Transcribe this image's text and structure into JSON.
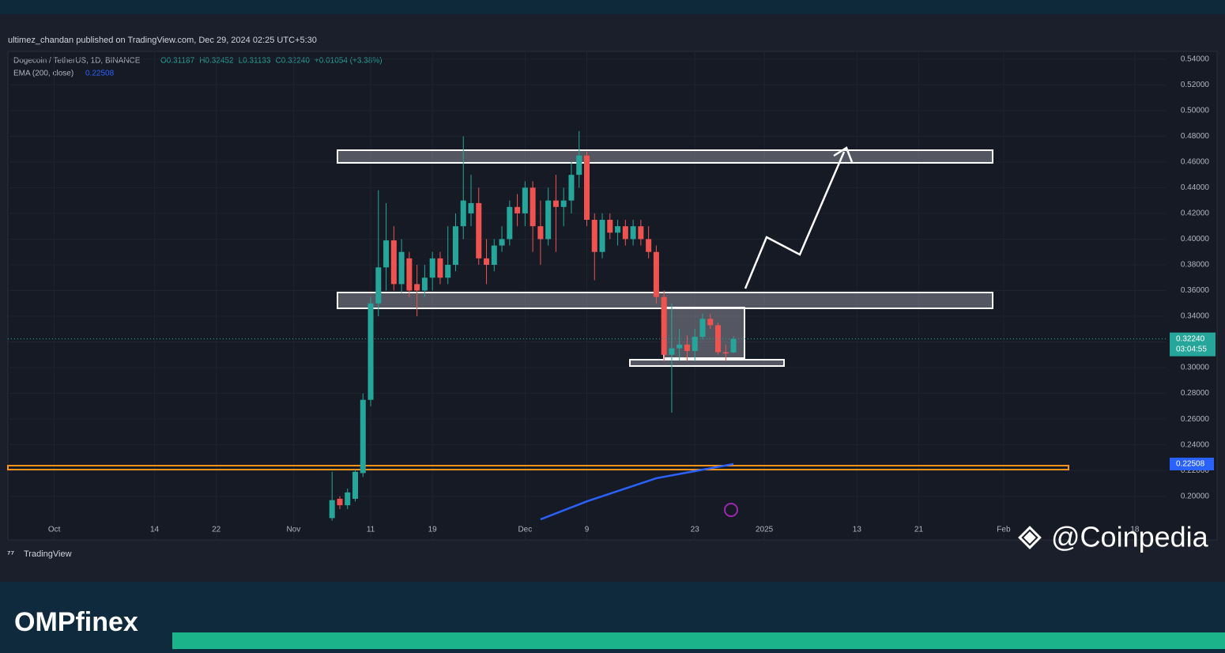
{
  "header": {
    "published": "ultimez_chandan published on TradingView.com, Dec 29, 2024 02:25 UTC+5:30",
    "symbol": "Dogecoin / TetherUS, 1D, BINANCE",
    "ohlc": [
      "O0.31187",
      "H0.32452",
      "L0.31133",
      "C0.32240",
      "+0.01054 (+3.38%)"
    ],
    "ema_value": "0.22508"
  },
  "chart_data": {
    "type": "candlestick",
    "up_color": "#26a69a",
    "down_color": "#ef5350",
    "x": [
      "2024-11-06",
      "2024-11-07",
      "2024-11-08",
      "2024-11-09",
      "2024-11-10",
      "2024-11-11",
      "2024-11-12",
      "2024-11-13",
      "2024-11-14",
      "2024-11-15",
      "2024-11-16",
      "2024-11-17",
      "2024-11-18",
      "2024-11-19",
      "2024-11-20",
      "2024-11-21",
      "2024-11-22",
      "2024-11-23",
      "2024-11-24",
      "2024-11-25",
      "2024-11-26",
      "2024-11-27",
      "2024-11-28",
      "2024-11-29",
      "2024-11-30",
      "2024-12-01",
      "2024-12-02",
      "2024-12-03",
      "2024-12-04",
      "2024-12-05",
      "2024-12-06",
      "2024-12-07",
      "2024-12-08",
      "2024-12-09",
      "2024-12-10",
      "2024-12-11",
      "2024-12-12",
      "2024-12-13",
      "2024-12-14",
      "2024-12-15",
      "2024-12-16",
      "2024-12-17",
      "2024-12-18",
      "2024-12-19",
      "2024-12-20",
      "2024-12-21",
      "2024-12-22",
      "2024-12-23",
      "2024-12-24",
      "2024-12-25",
      "2024-12-26",
      "2024-12-27",
      "2024-12-28"
    ],
    "open": [
      0.183,
      0.198,
      0.193,
      0.198,
      0.218,
      0.275,
      0.35,
      0.378,
      0.399,
      0.365,
      0.385,
      0.365,
      0.36,
      0.37,
      0.385,
      0.37,
      0.38,
      0.41,
      0.42,
      0.428,
      0.385,
      0.38,
      0.395,
      0.4,
      0.425,
      0.42,
      0.44,
      0.41,
      0.4,
      0.43,
      0.425,
      0.43,
      0.45,
      0.465,
      0.415,
      0.39,
      0.415,
      0.405,
      0.41,
      0.4,
      0.41,
      0.4,
      0.39,
      0.355,
      0.31,
      0.315,
      0.318,
      0.313,
      0.324,
      0.338,
      0.333,
      0.312,
      0.31187
    ],
    "high": [
      0.219,
      0.2,
      0.206,
      0.221,
      0.28,
      0.355,
      0.438,
      0.428,
      0.41,
      0.4,
      0.39,
      0.38,
      0.38,
      0.39,
      0.39,
      0.41,
      0.42,
      0.48,
      0.45,
      0.44,
      0.4,
      0.4,
      0.41,
      0.43,
      0.435,
      0.445,
      0.445,
      0.43,
      0.44,
      0.45,
      0.44,
      0.46,
      0.484,
      0.468,
      0.42,
      0.42,
      0.42,
      0.415,
      0.415,
      0.415,
      0.415,
      0.41,
      0.395,
      0.36,
      0.35,
      0.33,
      0.325,
      0.33,
      0.342,
      0.342,
      0.335,
      0.318,
      0.32452
    ],
    "low": [
      0.181,
      0.19,
      0.19,
      0.196,
      0.215,
      0.27,
      0.34,
      0.36,
      0.36,
      0.358,
      0.355,
      0.34,
      0.355,
      0.36,
      0.365,
      0.365,
      0.375,
      0.4,
      0.41,
      0.38,
      0.365,
      0.375,
      0.39,
      0.395,
      0.41,
      0.41,
      0.39,
      0.38,
      0.395,
      0.39,
      0.41,
      0.42,
      0.44,
      0.41,
      0.368,
      0.385,
      0.4,
      0.395,
      0.395,
      0.395,
      0.395,
      0.385,
      0.35,
      0.305,
      0.265,
      0.305,
      0.305,
      0.305,
      0.322,
      0.33,
      0.31,
      0.305,
      0.31133
    ],
    "close": [
      0.197,
      0.193,
      0.203,
      0.219,
      0.275,
      0.35,
      0.378,
      0.399,
      0.365,
      0.39,
      0.36,
      0.36,
      0.37,
      0.385,
      0.37,
      0.38,
      0.41,
      0.43,
      0.428,
      0.385,
      0.38,
      0.395,
      0.4,
      0.425,
      0.42,
      0.44,
      0.41,
      0.4,
      0.43,
      0.425,
      0.43,
      0.45,
      0.465,
      0.415,
      0.39,
      0.415,
      0.405,
      0.41,
      0.4,
      0.41,
      0.4,
      0.39,
      0.355,
      0.31,
      0.315,
      0.318,
      0.313,
      0.324,
      0.338,
      0.333,
      0.312,
      0.311,
      0.3224
    ],
    "ema": {
      "name": "EMA (200, close)",
      "color": "#2962ff",
      "x": [
        "2024-12-03",
        "2024-12-09",
        "2024-12-18",
        "2024-12-28"
      ],
      "values": [
        0.182,
        0.196,
        0.214,
        0.22508
      ]
    },
    "xlim": [
      "2024-09-25",
      "2025-02-22"
    ],
    "xticks": [
      {
        "value": "2024-10-01",
        "label": "Oct"
      },
      {
        "value": "2024-10-14",
        "label": "14"
      },
      {
        "value": "2024-10-22",
        "label": "22"
      },
      {
        "value": "2024-11-01",
        "label": "Nov"
      },
      {
        "value": "2024-11-11",
        "label": "11"
      },
      {
        "value": "2024-11-19",
        "label": "19"
      },
      {
        "value": "2024-12-01",
        "label": "Dec"
      },
      {
        "value": "2024-12-09",
        "label": "9"
      },
      {
        "value": "2024-12-23",
        "label": "23"
      },
      {
        "value": "2025-01-01",
        "label": "2025"
      },
      {
        "value": "2025-01-13",
        "label": "13"
      },
      {
        "value": "2025-01-21",
        "label": "21"
      },
      {
        "value": "2025-02-01",
        "label": "Feb"
      },
      {
        "value": "2025-02-18",
        "label": "18"
      }
    ],
    "ylim": [
      0.166,
      0.546
    ],
    "yticks": [
      {
        "value": 0.2,
        "label": "0.20000"
      },
      {
        "value": 0.22,
        "label": "0.22000"
      },
      {
        "value": 0.24,
        "label": "0.24000"
      },
      {
        "value": 0.26,
        "label": "0.26000"
      },
      {
        "value": 0.28,
        "label": "0.28000"
      },
      {
        "value": 0.3,
        "label": "0.30000"
      },
      {
        "value": 0.32,
        "label": "0.32000"
      },
      {
        "value": 0.34,
        "label": "0.34000"
      },
      {
        "value": 0.36,
        "label": "0.36000"
      },
      {
        "value": 0.38,
        "label": "0.38000"
      },
      {
        "value": 0.4,
        "label": "0.40000"
      },
      {
        "value": 0.42,
        "label": "0.42000"
      },
      {
        "value": 0.44,
        "label": "0.44000"
      },
      {
        "value": 0.46,
        "label": "0.46000"
      },
      {
        "value": 0.48,
        "label": "0.48000"
      },
      {
        "value": 0.5,
        "label": "0.50000"
      },
      {
        "value": 0.52,
        "label": "0.52000"
      },
      {
        "value": 0.54,
        "label": "0.54000"
      }
    ],
    "grid": true,
    "last_price": {
      "value": 0.3224,
      "label": "0.32240"
    },
    "countdown": "03:04:55",
    "ema_price": {
      "value": 0.22508,
      "label": "0.22508"
    }
  },
  "footer": {
    "tradingview": "TradingView",
    "watermark": "@Coinpedia",
    "brand": "OMPfinex"
  }
}
